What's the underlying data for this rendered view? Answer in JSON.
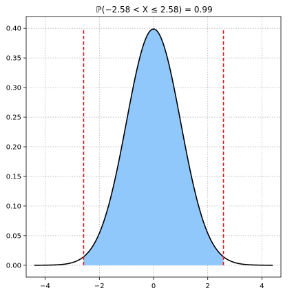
{
  "chart_data": {
    "type": "area",
    "title": "ℙ(−2.58 < X ≤ 2.58) = 0.99",
    "xlabel": "",
    "ylabel": "",
    "xlim": [
      -4.7,
      4.7
    ],
    "ylim": [
      -0.02,
      0.42
    ],
    "grid": true,
    "x_ticks": [
      -4,
      -2,
      0,
      2,
      4
    ],
    "x_tick_labels": [
      "−4",
      "−2",
      "0",
      "2",
      "4"
    ],
    "y_ticks": [
      0.0,
      0.05,
      0.1,
      0.15,
      0.2,
      0.25,
      0.3,
      0.35,
      0.4
    ],
    "y_tick_labels": [
      "0.00",
      "0.05",
      "0.10",
      "0.15",
      "0.20",
      "0.25",
      "0.30",
      "0.35",
      "0.40"
    ],
    "series": [
      {
        "kind": "curve",
        "color": "#000000",
        "x": [
          -4.4,
          -4.0,
          -3.6,
          -3.2,
          -2.8,
          -2.58,
          -2.4,
          -2.0,
          -1.6,
          -1.2,
          -0.8,
          -0.4,
          0.0,
          0.4,
          0.8,
          1.2,
          1.6,
          2.0,
          2.4,
          2.58,
          2.8,
          3.2,
          3.6,
          4.0,
          4.4
        ],
        "y": [
          0.0,
          0.0001,
          0.0006,
          0.0024,
          0.0079,
          0.0143,
          0.0224,
          0.054,
          0.1109,
          0.1942,
          0.2897,
          0.3683,
          0.3989,
          0.3683,
          0.2897,
          0.1942,
          0.1109,
          0.054,
          0.0224,
          0.0143,
          0.0079,
          0.0024,
          0.0006,
          0.0001,
          0.0
        ]
      },
      {
        "kind": "shaded_area",
        "color": "#90c8fc",
        "x_range": [
          -2.58,
          2.58
        ]
      },
      {
        "kind": "vline",
        "color": "#e8151b",
        "style": "dashed",
        "x": -2.58,
        "y_range": [
          0.0,
          0.4
        ]
      },
      {
        "kind": "vline",
        "color": "#e8151b",
        "style": "dashed",
        "x": 2.58,
        "y_range": [
          0.0,
          0.4
        ]
      }
    ]
  }
}
